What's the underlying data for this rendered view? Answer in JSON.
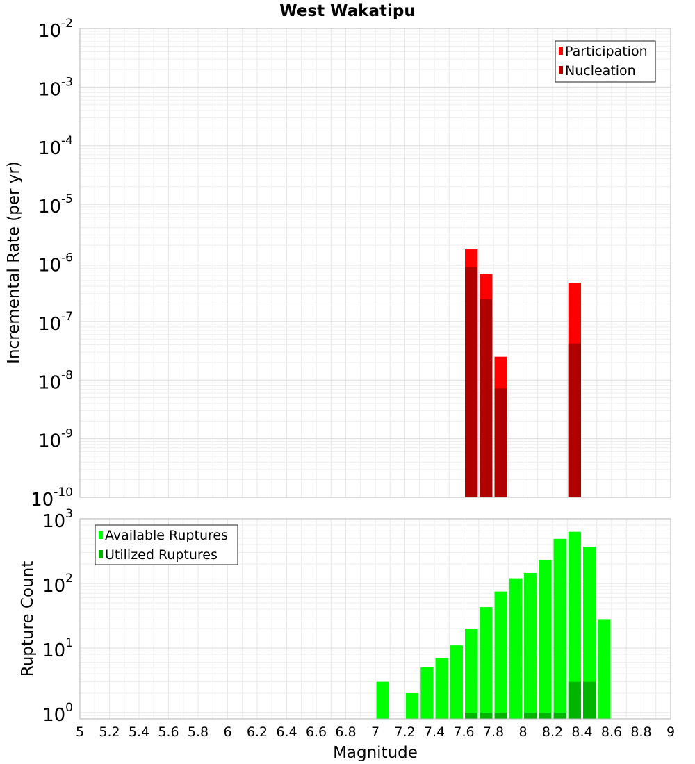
{
  "chart_data": [
    {
      "type": "bar",
      "title": "West Wakatipu",
      "ylabel": "Incremental Rate (per yr)",
      "xlabel": "",
      "yscale": "log",
      "ylim": [
        1e-10,
        0.01
      ],
      "xlim": [
        5,
        9
      ],
      "grid": true,
      "legend_position": "top-right",
      "y_tick_labels": [
        {
          "base": "10",
          "exp": "-2"
        },
        {
          "base": "10",
          "exp": "-3"
        },
        {
          "base": "10",
          "exp": "-4"
        },
        {
          "base": "10",
          "exp": "-5"
        },
        {
          "base": "10",
          "exp": "-6"
        },
        {
          "base": "10",
          "exp": "-7"
        },
        {
          "base": "10",
          "exp": "-8"
        },
        {
          "base": "10",
          "exp": "-9"
        },
        {
          "base": "10",
          "exp": "-10"
        }
      ],
      "series": [
        {
          "name": "Participation",
          "color": "#ff0000",
          "x": [
            7.65,
            7.75,
            7.85,
            8.35
          ],
          "values": [
            1.7e-06,
            6.5e-07,
            2.5e-08,
            4.6e-07
          ]
        },
        {
          "name": "Nucleation",
          "color": "#b00000",
          "x": [
            7.65,
            7.75,
            7.85,
            8.35
          ],
          "values": [
            8.5e-07,
            2.4e-07,
            7.2e-09,
            4.2e-08
          ]
        }
      ]
    },
    {
      "type": "bar",
      "title": "",
      "ylabel": "Rupture Count",
      "xlabel": "Magnitude",
      "yscale": "log",
      "ylim": [
        0.8,
        1000
      ],
      "xlim": [
        5,
        9
      ],
      "grid": true,
      "legend_position": "top-left",
      "x_tick_labels": [
        "5",
        "5.2",
        "5.4",
        "5.6",
        "5.8",
        "6",
        "6.2",
        "6.4",
        "6.6",
        "6.8",
        "7",
        "7.2",
        "7.4",
        "7.6",
        "7.8",
        "8",
        "8.2",
        "8.4",
        "8.6",
        "8.8",
        "9"
      ],
      "y_tick_labels": [
        {
          "base": "10",
          "exp": "3"
        },
        {
          "base": "10",
          "exp": "2"
        },
        {
          "base": "10",
          "exp": "1"
        },
        {
          "base": "10",
          "exp": "0"
        }
      ],
      "series": [
        {
          "name": "Available Ruptures",
          "color": "#00ff00",
          "x": [
            7.05,
            7.25,
            7.35,
            7.45,
            7.55,
            7.65,
            7.75,
            7.85,
            7.95,
            8.05,
            8.15,
            8.25,
            8.35,
            8.45,
            8.55
          ],
          "values": [
            3,
            2,
            5,
            7,
            11,
            20,
            43,
            75,
            120,
            145,
            230,
            490,
            630,
            370,
            28
          ]
        },
        {
          "name": "Utilized Ruptures",
          "color": "#00b400",
          "x": [
            7.65,
            7.75,
            7.85,
            8.05,
            8.15,
            8.25,
            8.35,
            8.45
          ],
          "values": [
            1,
            1,
            1,
            1,
            1,
            1,
            3,
            3
          ]
        }
      ]
    }
  ]
}
